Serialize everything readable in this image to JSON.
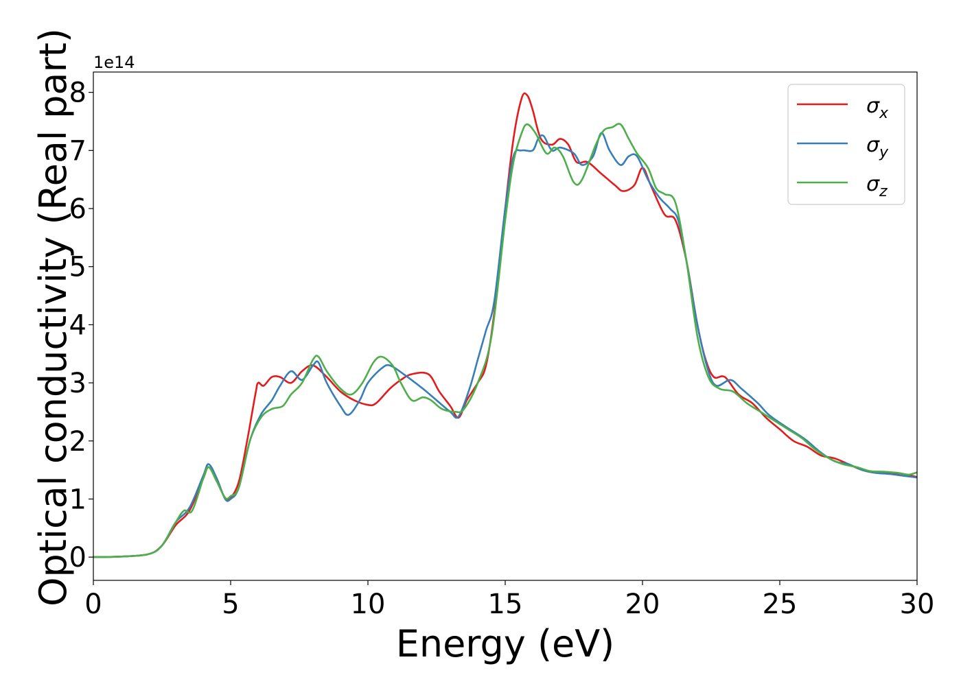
{
  "chart_data": {
    "type": "line",
    "xlabel": "Energy (eV)",
    "ylabel": "Optical conductivity (Real part)",
    "y_offset_label": "1e14",
    "xlim": [
      0,
      30
    ],
    "ylim": [
      -0.4,
      8.35
    ],
    "x_ticks": [
      0,
      5,
      10,
      15,
      20,
      25,
      30
    ],
    "y_ticks": [
      0,
      1,
      2,
      3,
      4,
      5,
      6,
      7,
      8
    ],
    "legend_position": "top-right",
    "series": [
      {
        "name": "σ",
        "subscript": "x",
        "color": "#e41a1c",
        "points": [
          [
            0,
            0
          ],
          [
            1,
            0.01
          ],
          [
            2,
            0.05
          ],
          [
            2.5,
            0.2
          ],
          [
            3,
            0.55
          ],
          [
            3.5,
            0.8
          ],
          [
            4,
            1.35
          ],
          [
            4.2,
            1.55
          ],
          [
            4.5,
            1.3
          ],
          [
            4.8,
            1.02
          ],
          [
            5,
            1.02
          ],
          [
            5.3,
            1.3
          ],
          [
            5.6,
            2.0
          ],
          [
            5.9,
            2.8
          ],
          [
            6.0,
            3.0
          ],
          [
            6.2,
            2.95
          ],
          [
            6.5,
            3.1
          ],
          [
            6.8,
            3.1
          ],
          [
            7.2,
            3.0
          ],
          [
            7.6,
            3.2
          ],
          [
            8,
            3.3
          ],
          [
            8.5,
            3.1
          ],
          [
            9,
            2.85
          ],
          [
            9.5,
            2.7
          ],
          [
            10,
            2.62
          ],
          [
            10.3,
            2.65
          ],
          [
            10.8,
            2.9
          ],
          [
            11.2,
            3.05
          ],
          [
            11.6,
            3.15
          ],
          [
            12.2,
            3.15
          ],
          [
            12.6,
            2.85
          ],
          [
            13,
            2.6
          ],
          [
            13.3,
            2.4
          ],
          [
            13.6,
            2.7
          ],
          [
            14,
            3.0
          ],
          [
            14.3,
            3.3
          ],
          [
            14.6,
            4.2
          ],
          [
            15,
            6.0
          ],
          [
            15.3,
            7.2
          ],
          [
            15.6,
            7.9
          ],
          [
            15.8,
            7.95
          ],
          [
            16,
            7.7
          ],
          [
            16.3,
            7.2
          ],
          [
            16.7,
            7.1
          ],
          [
            17,
            7.2
          ],
          [
            17.3,
            7.1
          ],
          [
            17.6,
            6.8
          ],
          [
            18,
            6.8
          ],
          [
            18.5,
            6.6
          ],
          [
            19,
            6.4
          ],
          [
            19.3,
            6.3
          ],
          [
            19.7,
            6.4
          ],
          [
            20,
            6.7
          ],
          [
            20.3,
            6.4
          ],
          [
            20.8,
            5.9
          ],
          [
            21.2,
            5.8
          ],
          [
            21.6,
            5.1
          ],
          [
            22,
            4.0
          ],
          [
            22.3,
            3.4
          ],
          [
            22.6,
            3.1
          ],
          [
            23,
            3.1
          ],
          [
            23.5,
            2.8
          ],
          [
            24,
            2.65
          ],
          [
            24.5,
            2.4
          ],
          [
            25,
            2.2
          ],
          [
            25.5,
            2.0
          ],
          [
            26,
            1.9
          ],
          [
            26.5,
            1.75
          ],
          [
            27,
            1.7
          ],
          [
            27.5,
            1.6
          ],
          [
            28,
            1.5
          ],
          [
            28.5,
            1.45
          ],
          [
            29,
            1.45
          ],
          [
            29.5,
            1.43
          ],
          [
            30,
            1.38
          ]
        ]
      },
      {
        "name": "σ",
        "subscript": "y",
        "color": "#377eb8",
        "points": [
          [
            0,
            0
          ],
          [
            1,
            0.01
          ],
          [
            2,
            0.05
          ],
          [
            2.5,
            0.2
          ],
          [
            3,
            0.6
          ],
          [
            3.5,
            0.85
          ],
          [
            4,
            1.4
          ],
          [
            4.2,
            1.6
          ],
          [
            4.5,
            1.35
          ],
          [
            4.8,
            1.0
          ],
          [
            5,
            1.0
          ],
          [
            5.3,
            1.2
          ],
          [
            5.7,
            2.0
          ],
          [
            6.1,
            2.45
          ],
          [
            6.5,
            2.7
          ],
          [
            6.8,
            2.95
          ],
          [
            7.2,
            3.2
          ],
          [
            7.6,
            3.05
          ],
          [
            8,
            3.3
          ],
          [
            8.2,
            3.35
          ],
          [
            8.5,
            3.0
          ],
          [
            9,
            2.6
          ],
          [
            9.3,
            2.45
          ],
          [
            9.7,
            2.7
          ],
          [
            10,
            3.0
          ],
          [
            10.5,
            3.25
          ],
          [
            10.8,
            3.3
          ],
          [
            11.3,
            3.15
          ],
          [
            12,
            2.9
          ],
          [
            12.5,
            2.7
          ],
          [
            13,
            2.5
          ],
          [
            13.3,
            2.42
          ],
          [
            13.7,
            2.9
          ],
          [
            14,
            3.4
          ],
          [
            14.3,
            3.9
          ],
          [
            14.6,
            4.4
          ],
          [
            15,
            6.0
          ],
          [
            15.3,
            6.9
          ],
          [
            15.6,
            7.0
          ],
          [
            16,
            7.0
          ],
          [
            16.2,
            7.2
          ],
          [
            16.4,
            7.25
          ],
          [
            16.7,
            7.0
          ],
          [
            17,
            7.05
          ],
          [
            17.5,
            6.95
          ],
          [
            17.8,
            6.75
          ],
          [
            18.2,
            6.9
          ],
          [
            18.5,
            7.3
          ],
          [
            18.8,
            7.0
          ],
          [
            19.2,
            6.75
          ],
          [
            19.5,
            6.9
          ],
          [
            19.8,
            6.9
          ],
          [
            20.2,
            6.5
          ],
          [
            20.6,
            6.2
          ],
          [
            21,
            6.0
          ],
          [
            21.3,
            5.8
          ],
          [
            21.6,
            5.1
          ],
          [
            22,
            4.0
          ],
          [
            22.4,
            3.2
          ],
          [
            22.7,
            2.95
          ],
          [
            23.2,
            3.05
          ],
          [
            23.6,
            2.9
          ],
          [
            24.2,
            2.65
          ],
          [
            24.6,
            2.45
          ],
          [
            25.2,
            2.25
          ],
          [
            25.7,
            2.1
          ],
          [
            26,
            2.0
          ],
          [
            26.5,
            1.8
          ],
          [
            27,
            1.65
          ],
          [
            27.5,
            1.6
          ],
          [
            28,
            1.5
          ],
          [
            28.5,
            1.45
          ],
          [
            29,
            1.43
          ],
          [
            29.5,
            1.4
          ],
          [
            30,
            1.37
          ]
        ]
      },
      {
        "name": "σ",
        "subscript": "z",
        "color": "#4daf4a",
        "points": [
          [
            0,
            0
          ],
          [
            1,
            0.01
          ],
          [
            2,
            0.05
          ],
          [
            2.5,
            0.2
          ],
          [
            3,
            0.6
          ],
          [
            3.3,
            0.8
          ],
          [
            3.6,
            0.8
          ],
          [
            4,
            1.35
          ],
          [
            4.2,
            1.55
          ],
          [
            4.5,
            1.3
          ],
          [
            4.8,
            1.02
          ],
          [
            5,
            1.05
          ],
          [
            5.3,
            1.2
          ],
          [
            5.7,
            2.0
          ],
          [
            6.1,
            2.4
          ],
          [
            6.5,
            2.55
          ],
          [
            6.9,
            2.6
          ],
          [
            7.2,
            2.8
          ],
          [
            7.6,
            3.0
          ],
          [
            8,
            3.4
          ],
          [
            8.2,
            3.45
          ],
          [
            8.5,
            3.2
          ],
          [
            9,
            2.9
          ],
          [
            9.4,
            2.8
          ],
          [
            9.8,
            3.0
          ],
          [
            10.2,
            3.35
          ],
          [
            10.5,
            3.45
          ],
          [
            10.9,
            3.3
          ],
          [
            11.2,
            3.0
          ],
          [
            11.6,
            2.7
          ],
          [
            12,
            2.75
          ],
          [
            12.3,
            2.7
          ],
          [
            12.7,
            2.55
          ],
          [
            13.2,
            2.5
          ],
          [
            13.5,
            2.55
          ],
          [
            14,
            3.0
          ],
          [
            14.5,
            3.8
          ],
          [
            15,
            5.8
          ],
          [
            15.3,
            6.8
          ],
          [
            15.6,
            7.3
          ],
          [
            15.8,
            7.45
          ],
          [
            16.1,
            7.3
          ],
          [
            16.5,
            6.95
          ],
          [
            16.8,
            7.05
          ],
          [
            17.1,
            6.9
          ],
          [
            17.5,
            6.45
          ],
          [
            17.8,
            6.5
          ],
          [
            18.3,
            7.1
          ],
          [
            18.6,
            7.35
          ],
          [
            18.9,
            7.4
          ],
          [
            19.2,
            7.45
          ],
          [
            19.5,
            7.2
          ],
          [
            19.8,
            6.95
          ],
          [
            20.2,
            6.7
          ],
          [
            20.5,
            6.35
          ],
          [
            20.8,
            6.25
          ],
          [
            21.2,
            6.1
          ],
          [
            21.6,
            5.1
          ],
          [
            22,
            3.8
          ],
          [
            22.4,
            3.1
          ],
          [
            22.8,
            2.9
          ],
          [
            23.3,
            2.85
          ],
          [
            23.8,
            2.65
          ],
          [
            24.3,
            2.5
          ],
          [
            24.8,
            2.35
          ],
          [
            25.3,
            2.2
          ],
          [
            25.8,
            2.05
          ],
          [
            26.3,
            1.85
          ],
          [
            26.8,
            1.7
          ],
          [
            27.3,
            1.6
          ],
          [
            27.8,
            1.55
          ],
          [
            28.3,
            1.48
          ],
          [
            28.8,
            1.47
          ],
          [
            29.3,
            1.45
          ],
          [
            29.7,
            1.42
          ],
          [
            30,
            1.46
          ]
        ]
      }
    ]
  }
}
